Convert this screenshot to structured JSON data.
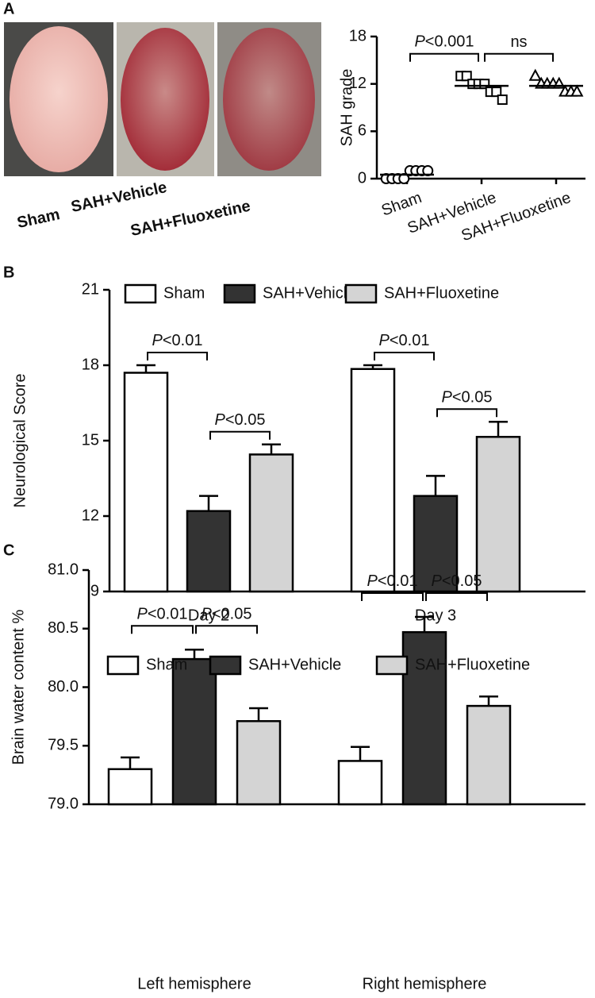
{
  "photo_labels": [
    "Sham",
    "SAH+Vehicle",
    "SAH+Fluoxetine"
  ],
  "chart_data": [
    {
      "panel": "A",
      "type": "scatter",
      "ylabel": "SAH grade",
      "categories": [
        "Sham",
        "SAH+Vehicle",
        "SAH+Fluoxetine"
      ],
      "groups": [
        {
          "marker": "circle",
          "values": [
            0,
            0,
            0,
            0,
            1,
            1,
            1,
            1
          ]
        },
        {
          "marker": "square",
          "values": [
            13,
            13,
            12,
            12,
            12,
            11,
            11,
            10
          ]
        },
        {
          "marker": "triangle",
          "values": [
            13,
            12,
            12,
            12,
            12,
            11,
            11,
            11
          ]
        }
      ],
      "means": [
        0.5,
        11.75,
        11.75
      ],
      "ylim": [
        0,
        18
      ],
      "yticks": [
        0,
        6,
        12,
        18
      ],
      "comparisons": [
        {
          "groups": [
            0,
            1
          ],
          "label": "P<0.001"
        },
        {
          "groups": [
            1,
            2
          ],
          "label": "ns"
        }
      ]
    },
    {
      "panel": "B",
      "type": "bar",
      "ylabel": "Neurological Score",
      "categories": [
        "Day 2",
        "Day 3"
      ],
      "series": [
        {
          "name": "Sham",
          "color": "#ffffff",
          "values": [
            17.7,
            17.85
          ],
          "errors": [
            0.3,
            0.15
          ]
        },
        {
          "name": "SAH+Vehicle",
          "color": "#333333",
          "values": [
            12.2,
            12.8
          ],
          "errors": [
            0.6,
            0.8
          ]
        },
        {
          "name": "SAH+Fluoxetine",
          "color": "#d4d4d4",
          "values": [
            14.45,
            15.15
          ],
          "errors": [
            0.4,
            0.6
          ]
        }
      ],
      "ylim": [
        9,
        21
      ],
      "yticks": [
        9,
        12,
        15,
        18,
        21
      ],
      "comparisons": [
        {
          "category": 0,
          "bars": [
            0,
            1
          ],
          "label": "P<0.01"
        },
        {
          "category": 0,
          "bars": [
            1,
            2
          ],
          "label": "P<0.05"
        },
        {
          "category": 1,
          "bars": [
            0,
            1
          ],
          "label": "P<0.01"
        },
        {
          "category": 1,
          "bars": [
            1,
            2
          ],
          "label": "P<0.05"
        }
      ]
    },
    {
      "panel": "C",
      "type": "bar",
      "ylabel": "Brain water content %",
      "categories": [
        "Left hemisphere",
        "Right hemisphere"
      ],
      "series": [
        {
          "name": "Sham",
          "color": "#ffffff",
          "values": [
            79.3,
            79.37
          ],
          "errors": [
            0.1,
            0.12
          ]
        },
        {
          "name": "SAH+Vehicle",
          "color": "#333333",
          "values": [
            80.24,
            80.47
          ],
          "errors": [
            0.08,
            0.13
          ]
        },
        {
          "name": "SAH+Fluoxetine",
          "color": "#d4d4d4",
          "values": [
            79.71,
            79.84
          ],
          "errors": [
            0.11,
            0.08
          ]
        }
      ],
      "ylim": [
        79,
        81
      ],
      "yticks": [
        {
          "value": 79,
          "label": "79.0"
        },
        {
          "value": 79.5,
          "label": "79.5"
        },
        {
          "value": 80,
          "label": "80.0"
        },
        {
          "value": 80.5,
          "label": "80.5"
        },
        {
          "value": 81,
          "label": "81.0"
        }
      ],
      "comparisons": [
        {
          "category": 0,
          "bars": [
            0,
            1
          ],
          "label": "P<0.01"
        },
        {
          "category": 0,
          "bars": [
            1,
            2
          ],
          "label": "P<0.05"
        },
        {
          "category": 1,
          "bars": [
            0,
            1
          ],
          "label": "P<0.01"
        },
        {
          "category": 1,
          "bars": [
            1,
            2
          ],
          "label": "P<0.05"
        }
      ]
    }
  ]
}
